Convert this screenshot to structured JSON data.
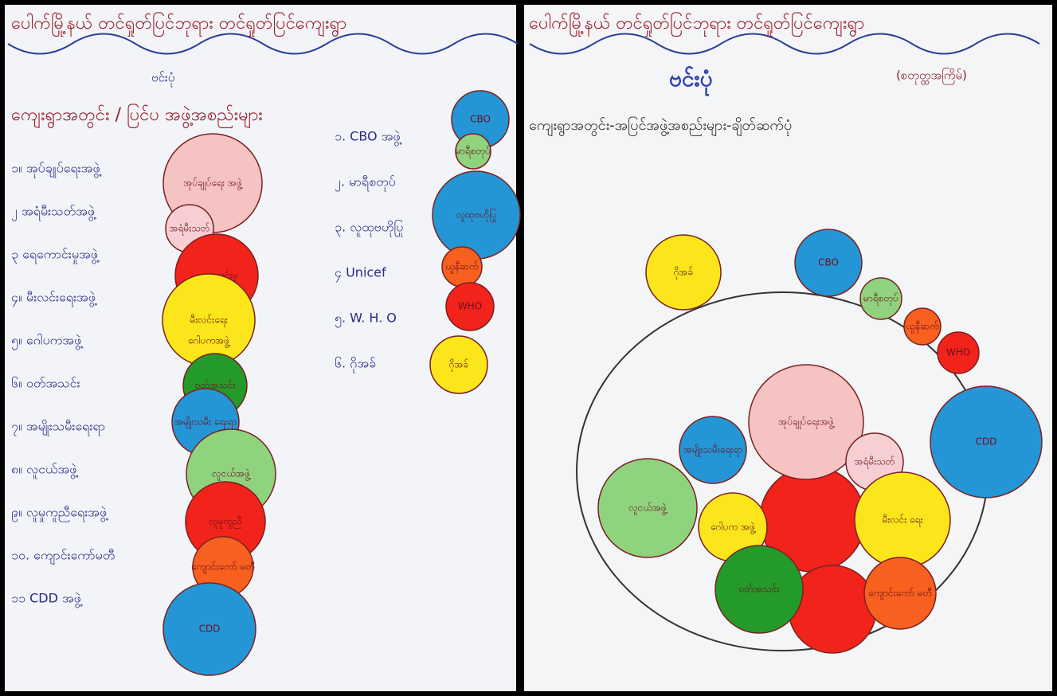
{
  "left": {
    "header": "ပေါက်မြို့နယ် တင်ရှုတ်ပြင်ဘုရား တင်ရှုတ်ပြင်ကျေးရွာ",
    "subtitle": "ဗင်းပုံ",
    "heading": "ကျေးရွာအတွင်း / ပြင်ပ အဖွဲ့အစည်းများ",
    "inside_list": [
      "၁။ အုပ်ချုပ်ရေးအဖွဲ့",
      "၂ အရံမီးသတ်အဖွဲ့",
      "၃ ရေကောင်းမှုအဖွဲ့",
      "၄။ မီးလင်းရေးအဖွဲ့",
      "၅။ ဂေါပကအဖွဲ့",
      "၆။ ဝတ်အသင်း",
      "၇။ အမျိုးသမီးရေးရာ",
      "၈။ လူငယ်အဖွဲ့",
      "၉။ လူမှုကူညီရေးအဖွဲ့",
      "၁၀. ကျောင်းကော်မတီ",
      "၁၁ CDD အဖွဲ့"
    ],
    "outside_list": [
      "၁. CBO အဖွဲ့",
      "၂. မာရီစတုပ်",
      "၃. လူထုဗဟိုပြု",
      "၄ Unicef",
      "၅. W. H. O",
      "၆. ဂိုအခ်"
    ],
    "circles": [
      "အုပ်ချုပ်ရေး အဖွဲ့",
      "အရံမီးသတ်",
      "ရေကောင်းမှု",
      "မီးလင်းရေး",
      "ဂေါပကအဖွဲ့",
      "ဝတ်အသင်း",
      "အမျိုးသမီး ရေးရာ",
      "လူငယ်အဖွဲ့",
      "လူမှုကူညီ",
      "ကျောင်းကော် မတီ",
      "CDD",
      "CBO",
      "မာရီစတုပ်",
      "လူထုဗဟိုပြု",
      "ယူနီဆက်",
      "WHO",
      "ဂိုအခ်"
    ]
  },
  "right": {
    "header": "ပေါက်မြို့နယ် တင်ရှုတ်ပြင်ဘုရား တင်ရှုတ်ပြင်ကျေးရွာ",
    "subtitle": "ဗင်းပုံ",
    "note": "(စတုတ္ထအကြိမ်)",
    "heading": "ကျေးရွာအတွင်း-အပြင်အဖွဲ့အစည်းများ-ချိတ်ဆက်ပုံ",
    "circles": [
      "ဂိုအခ်",
      "CBO",
      "မာရီစတုပ်",
      "ယူနီဆက်",
      "WHO",
      "CDD",
      "အုပ်ချုပ်ရေးအဖွဲ့",
      "အရံမီးသတ်",
      "အမျိုးသမီးရေးရာ",
      "လူငယ်အဖွဲ့",
      "ဂေါပက အဖွဲ့",
      "မီးလင်း ရေး",
      "ဝတ်အသင်း",
      "ကျောင်းကော် မတီ"
    ]
  }
}
